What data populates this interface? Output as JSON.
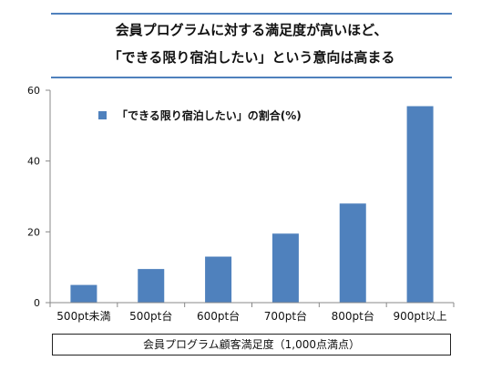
{
  "colors": {
    "bar": "#4f81bd",
    "title_rule": "#4f81bd",
    "axis": "#888888",
    "text": "#111111"
  },
  "title": {
    "line1": "会員プログラムに対する満足度が高いほど、",
    "line2": "「できる限り宿泊したい」という意向は高まる"
  },
  "chart_data": {
    "type": "bar",
    "title": "会員プログラムに対する満足度が高いほど、「できる限り宿泊したい」という意向は高まる",
    "xlabel": "会員プログラム顧客満足度（1,000点満点）",
    "ylabel": "",
    "ylim": [
      0,
      60
    ],
    "yticks": [
      0,
      20,
      40,
      60
    ],
    "grid": false,
    "legend_position": "top-left",
    "categories": [
      "500pt未満",
      "500pt台",
      "600pt台",
      "700pt台",
      "800pt台",
      "900pt以上"
    ],
    "series": [
      {
        "name": "「できる限り宿泊したい」の割合(%)",
        "values": [
          5,
          9.5,
          13,
          19.5,
          28,
          55.5
        ]
      }
    ]
  }
}
